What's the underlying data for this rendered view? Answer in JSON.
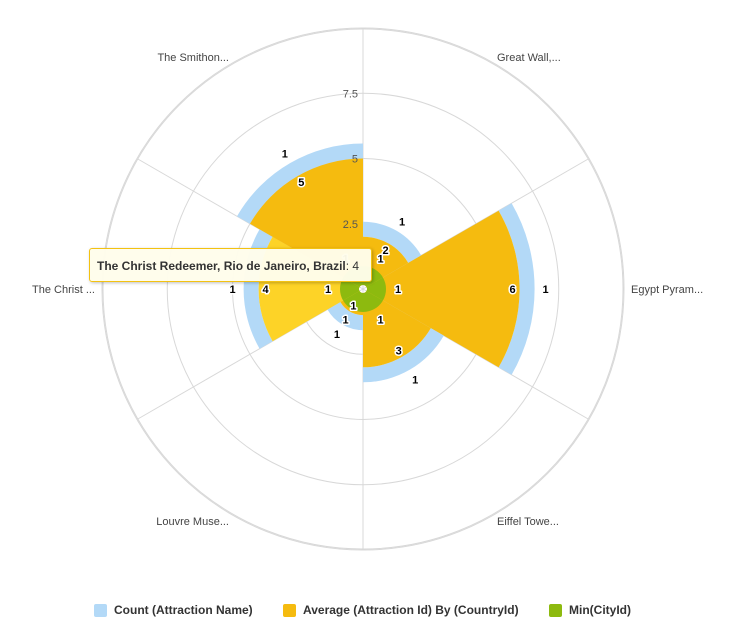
{
  "chart_data": {
    "type": "polar-bar",
    "title": "",
    "categories": [
      "Great Wall,...",
      "Egypt Pyram...",
      "Eiffel Towe...",
      "Louvre Muse...",
      "The Christ ...",
      "The Smithon..."
    ],
    "radial_axis": {
      "min": 0,
      "max": 7.5,
      "ticks": [
        "2.5",
        "5",
        "7.5"
      ],
      "grid": true
    },
    "series": [
      {
        "name": "Count (Attraction Name)",
        "color": "#b3d9f7",
        "values": [
          1,
          1,
          1,
          1,
          1,
          1
        ]
      },
      {
        "name": "Average (Attraction Id) By (CountryId)",
        "color": "#f5bb0f",
        "values": [
          2,
          6,
          3,
          1,
          4,
          5
        ]
      },
      {
        "name": "Min(CityId)",
        "color": "#8dba0f",
        "values": [
          1,
          1,
          1,
          1,
          1,
          1
        ]
      }
    ],
    "legend_position": "bottom",
    "highlighted": {
      "category_index": 4,
      "series_index": 1,
      "color": "#fdd327"
    }
  },
  "tooltip": {
    "name": "The Christ Redeemer, Rio de Janeiro, Brazil",
    "separator": ": ",
    "value": "4"
  },
  "legend": {
    "items": [
      {
        "label": "Count (Attraction Name)",
        "color": "#b3d9f7"
      },
      {
        "label": "Average (Attraction Id) By (CountryId)",
        "color": "#f5bb0f"
      },
      {
        "label": "Min(CityId)",
        "color": "#8dba0f"
      }
    ]
  }
}
